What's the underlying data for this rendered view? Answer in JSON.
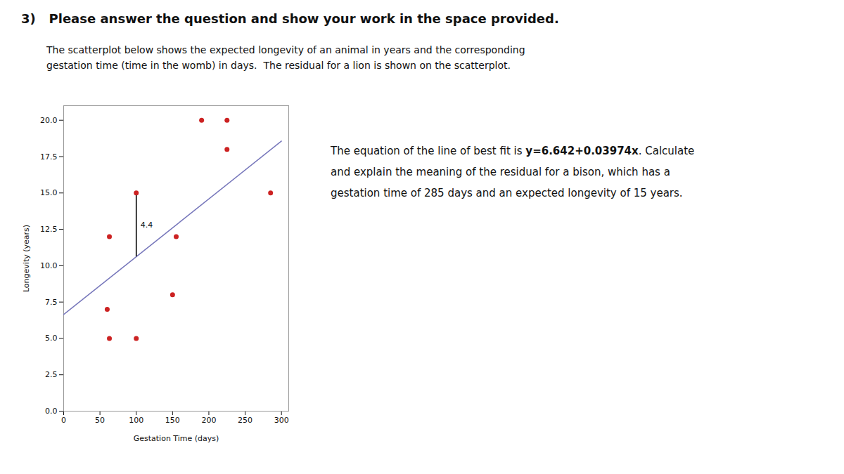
{
  "chart_data": {
    "type": "scatter",
    "title": "3)   Please answer the question and show your work in the space provided.",
    "subtitle": [
      "The scatterplot below shows the expected longevity of an animal in years and the corresponding",
      "gestation time (time in the womb) in days.  The residual for a lion is shown on the scatterplot."
    ],
    "x": [
      60,
      63,
      63,
      100,
      100,
      150,
      155,
      190,
      225,
      225,
      285
    ],
    "values": [
      7,
      12,
      5,
      15,
      5,
      8,
      12,
      20,
      18,
      20,
      15
    ],
    "color": "#cc2222",
    "fit_line": {
      "x": [
        0,
        300
      ],
      "values": [
        6.642,
        18.564
      ],
      "color": "#7777bb"
    },
    "residual": {
      "x": 100,
      "values": [
        10.616,
        15
      ],
      "label": "4.4",
      "color": "#000000"
    },
    "xlabel": "Gestation Time (days)",
    "ylabel": "Longevity (years)",
    "xlim": [
      0,
      310
    ],
    "ylim": [
      0,
      21
    ],
    "xticks": [
      0,
      50,
      100,
      150,
      200,
      250,
      300
    ],
    "yticks": [
      {
        "value": 0,
        "label": "0.0"
      },
      2.5,
      {
        "value": 5,
        "label": "5.0"
      },
      7.5,
      {
        "value": 10,
        "label": "10.0"
      },
      12.5,
      {
        "value": 15,
        "label": "15.0"
      },
      17.5,
      {
        "value": 20,
        "label": "20.0"
      }
    ],
    "grid": false,
    "text": {
      "before_equation": "The equation of the line of best fit is ",
      "equation": "y=6.642+0.03974x",
      "after_equation": ". Calculate",
      "lines": [
        "and explain the meaning of the residual for a bison, which has a",
        "gestation time of 285 days and an expected longevity of 15 years."
      ]
    }
  }
}
